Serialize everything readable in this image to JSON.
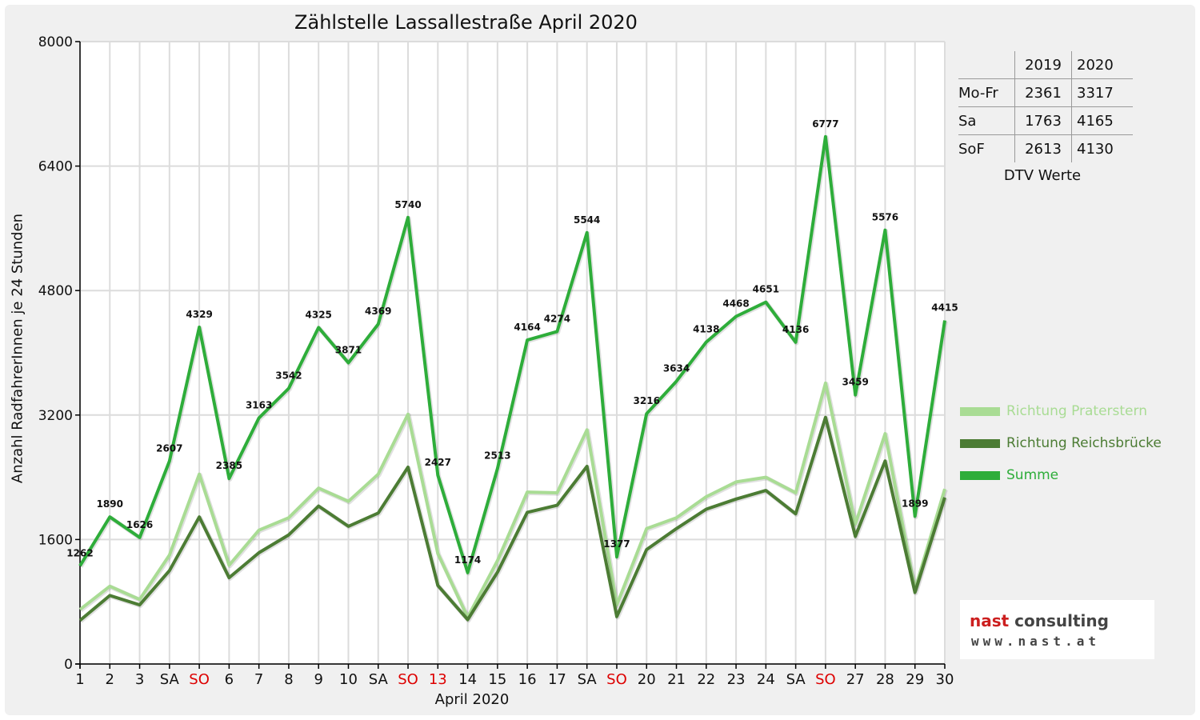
{
  "chart_data": {
    "type": "line",
    "title": "Zählstelle Lassallestraße April 2020",
    "xlabel": "April 2020",
    "ylabel": "Anzahl RadfahrerInnen je 24 Stunden",
    "ylim": [
      0,
      8000
    ],
    "yticks": [
      0,
      1600,
      3200,
      4800,
      6400,
      8000
    ],
    "grid": true,
    "legend_position": "right",
    "categories": [
      "1",
      "2",
      "3",
      "SA",
      "SO",
      "6",
      "7",
      "8",
      "9",
      "10",
      "SA",
      "SO",
      "13",
      "14",
      "15",
      "16",
      "17",
      "SA",
      "SO",
      "20",
      "21",
      "22",
      "23",
      "24",
      "SA",
      "SO",
      "27",
      "28",
      "29",
      "30"
    ],
    "category_colors": [
      "#111111",
      "#111111",
      "#111111",
      "#111111",
      "#dd0000",
      "#111111",
      "#111111",
      "#111111",
      "#111111",
      "#111111",
      "#111111",
      "#dd0000",
      "#dd0000",
      "#111111",
      "#111111",
      "#111111",
      "#111111",
      "#111111",
      "#dd0000",
      "#111111",
      "#111111",
      "#111111",
      "#111111",
      "#111111",
      "#111111",
      "#dd0000",
      "#111111",
      "#111111",
      "#111111",
      "#111111"
    ],
    "series": [
      {
        "name": "Richtung Praterstern",
        "color": "#a9dc94",
        "values": [
          700,
          1000,
          830,
          1400,
          2440,
          1270,
          1720,
          1880,
          2260,
          2090,
          2440,
          3210,
          1420,
          600,
          1330,
          2210,
          2200,
          3010,
          760,
          1740,
          1880,
          2150,
          2340,
          2400,
          2200,
          3610,
          1800,
          2960,
          960,
          2250
        ]
      },
      {
        "name": "Richtung Reichsbrücke",
        "color": "#4c7c34",
        "values": [
          560,
          880,
          760,
          1200,
          1890,
          1110,
          1430,
          1660,
          2030,
          1770,
          1940,
          2530,
          1010,
          570,
          1180,
          1950,
          2040,
          2540,
          610,
          1470,
          1740,
          1990,
          2120,
          2230,
          1930,
          3170,
          1640,
          2610,
          920,
          2140
        ]
      },
      {
        "name": "Summe",
        "color": "#2ead3a",
        "values": [
          1262,
          1890,
          1626,
          2607,
          4329,
          2385,
          3163,
          3542,
          4325,
          3871,
          4369,
          5740,
          2427,
          1174,
          2513,
          4164,
          4274,
          5544,
          1377,
          3216,
          3634,
          4138,
          4468,
          4651,
          4136,
          6777,
          3459,
          5576,
          1899,
          4415
        ]
      }
    ],
    "data_labels": [
      "1262",
      "1890",
      "1626",
      "2607",
      "4329",
      "2385",
      "3163",
      "3542",
      "4325",
      "3871",
      "4369",
      "5740",
      "2427",
      "1174",
      "2513",
      "4164",
      "4274",
      "5544",
      "1377",
      "3216",
      "3634",
      "4138",
      "4468",
      "4651",
      "4136",
      "6777",
      "3459",
      "5576",
      "1899",
      "4415"
    ]
  },
  "dtv_table": {
    "header": [
      "",
      "2019",
      "2020"
    ],
    "rows": [
      {
        "label": "Mo-Fr",
        "y2019": "2361",
        "y2020": "3317"
      },
      {
        "label": "Sa",
        "y2019": "1763",
        "y2020": "4165"
      },
      {
        "label": "SoF",
        "y2019": "2613",
        "y2020": "4130"
      }
    ],
    "caption": "DTV Werte"
  },
  "logo": {
    "name_part1": "nast",
    "name_part2": " consulting",
    "url": "www.nast.at"
  }
}
